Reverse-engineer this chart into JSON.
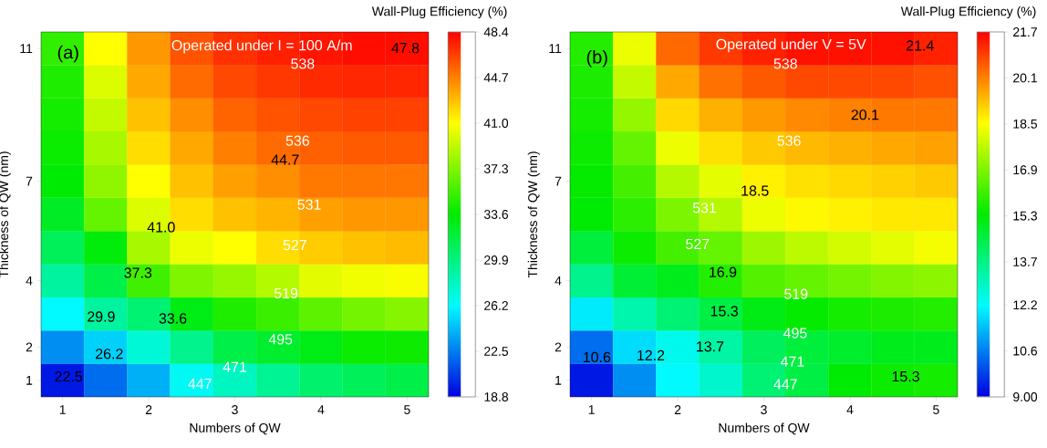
{
  "chart_data": [
    {
      "type": "heatmap",
      "xlabel": "Numbers of QW",
      "ylabel": "Thickness of QW (nm)",
      "clabel": "Wall-Plug Efficiency (%)",
      "categories": [
        "1",
        null,
        "2",
        null,
        "3",
        null,
        "4",
        null,
        "5"
      ],
      "y_categories": [
        "11",
        null,
        null,
        null,
        "7",
        null,
        null,
        "4",
        null,
        "2",
        "1"
      ],
      "cells": [
        [
          35,
          41,
          44,
          46,
          47,
          47.5,
          47.8,
          48,
          48
        ],
        [
          34.5,
          40,
          43.5,
          45.3,
          46.3,
          46.8,
          47.2,
          47.3,
          47.3
        ],
        [
          34.2,
          39.3,
          42.8,
          44.3,
          45.5,
          46,
          46.3,
          46.5,
          46.5
        ],
        [
          33.9,
          38.5,
          42,
          43.5,
          44.7,
          45.3,
          45.6,
          45.8,
          45.8
        ],
        [
          33.5,
          37.8,
          41,
          42.8,
          43.8,
          44.3,
          44.9,
          45,
          45
        ],
        [
          32.5,
          36.5,
          40,
          42,
          42.8,
          43.2,
          43.8,
          44,
          44
        ],
        [
          31,
          33.3,
          38.5,
          40.5,
          41,
          42,
          42.5,
          42.8,
          43
        ],
        [
          29,
          31.5,
          35.5,
          37.3,
          38,
          38.8,
          40.2,
          40.6,
          40.8
        ],
        [
          26.2,
          29,
          30.3,
          33,
          34.5,
          35.3,
          36.3,
          37,
          37.5
        ],
        [
          23,
          25,
          27.4,
          29.5,
          31.5,
          32.3,
          33,
          33.9,
          34
        ],
        [
          19.5,
          22,
          24,
          26.5,
          28,
          29.3,
          30.5,
          31,
          31.5
        ]
      ],
      "clim": [
        18.8,
        48.4
      ],
      "cticks": [
        18.8,
        22.5,
        26.2,
        29.9,
        33.6,
        37.3,
        {
          "value": 41.0,
          "label": "41.0"
        },
        44.7,
        48.4
      ],
      "annotations": [
        "(a)",
        "Operated under I = 100 A/m",
        "47.8",
        "44.7",
        "41.0",
        "37.3",
        "33.6",
        "29.9",
        "26.2",
        "22.5",
        "538",
        "536",
        "531",
        "527",
        "519",
        "495",
        "471",
        "447"
      ]
    },
    {
      "type": "heatmap",
      "xlabel": "Numbers of QW",
      "ylabel": "Thickness of QW (nm)",
      "clabel": "Wall-Plug Efficiency (%)",
      "categories": [
        "1",
        null,
        "2",
        null,
        "3",
        null,
        "4",
        null,
        "5"
      ],
      "y_categories": [
        "11",
        null,
        null,
        null,
        "7",
        null,
        null,
        "4",
        null,
        "2",
        "1"
      ],
      "cells": [
        [
          15.8,
          18.3,
          20.4,
          21,
          21.3,
          21.5,
          21.5,
          21.5,
          21.3
        ],
        [
          15.7,
          17.8,
          19.6,
          20.3,
          20.6,
          20.8,
          20.8,
          20.8,
          20.7
        ],
        [
          15.6,
          17.2,
          19,
          19.5,
          19.8,
          20,
          20.1,
          20.2,
          20.2
        ],
        [
          15.5,
          16.6,
          18.3,
          18.9,
          19.2,
          19.4,
          19.5,
          19.6,
          19.7
        ],
        [
          15.4,
          16.2,
          17.6,
          18.2,
          18.7,
          18.9,
          19,
          19.1,
          19.2
        ],
        [
          15.3,
          15.9,
          16.9,
          17.6,
          18.3,
          18.6,
          18.7,
          18.8,
          18.8
        ],
        [
          14.6,
          15.5,
          16.2,
          16.6,
          17.3,
          17.7,
          18,
          18.2,
          18.4
        ],
        [
          13.6,
          14.7,
          15,
          15.8,
          16.4,
          16.6,
          16.8,
          17,
          17.1
        ],
        [
          12,
          13.2,
          13.9,
          14.5,
          15.1,
          15.4,
          15.6,
          15.7,
          15.8
        ],
        [
          10.4,
          11.8,
          12.4,
          13.3,
          14.2,
          14.6,
          14.8,
          15,
          15
        ],
        [
          9.3,
          10.8,
          12.2,
          12.8,
          13.9,
          14.5,
          15.3,
          15.5,
          15.6
        ]
      ],
      "clim": [
        9.0,
        21.7
      ],
      "cticks": [
        {
          "value": 9.0,
          "label": "9.00"
        },
        10.6,
        12.2,
        13.7,
        15.3,
        16.9,
        18.5,
        20.1,
        21.7
      ],
      "annotations": [
        "(b)",
        "Operated under V = 5V",
        "21.4",
        "20.1",
        "18.5",
        "16.9",
        "15.3",
        "13.7",
        "12.2",
        "10.6",
        "15.3",
        "538",
        "536",
        "531",
        "527",
        "519",
        "495",
        "471",
        "447"
      ]
    }
  ]
}
